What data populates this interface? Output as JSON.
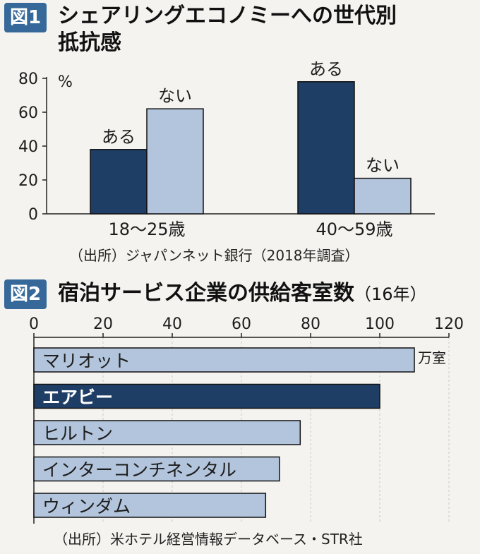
{
  "colors": {
    "dark_bar": "#1f3e66",
    "light_bar": "#b3c5dc",
    "tag_bg": "#36699a",
    "background": "#f4f3ef",
    "axis": "#222222"
  },
  "fig1": {
    "tag": "図1",
    "title_line1": "シェアリングエコノミーへの世代別",
    "title_line2": "抵抗感",
    "unit": "%",
    "source": "（出所）ジャパンネット銀行（2018年調査）"
  },
  "fig2": {
    "tag": "図2",
    "title": "宿泊サービス企業の供給客室数",
    "title_suffix": "（16年）",
    "unit": "万室",
    "source": "（出所）米ホテル経営情報データベース・STR社"
  },
  "chart_data": [
    {
      "type": "bar",
      "categories": [
        "18〜25歳",
        "40〜59歳"
      ],
      "series": [
        {
          "name": "ある",
          "values": [
            38,
            78
          ]
        },
        {
          "name": "ない",
          "values": [
            62,
            21
          ]
        }
      ],
      "ylim": [
        0,
        80
      ],
      "yticks": [
        0,
        20,
        40,
        60,
        80
      ],
      "ylabel": "%",
      "grid": false
    },
    {
      "type": "bar",
      "orientation": "horizontal",
      "categories": [
        "マリオット",
        "エアビー",
        "ヒルトン",
        "インターコンチネンタル",
        "ウィンダム"
      ],
      "values": [
        110,
        100,
        77,
        71,
        67
      ],
      "highlight": "エアビー",
      "xlim": [
        0,
        120
      ],
      "xticks": [
        0,
        20,
        40,
        60,
        80,
        100,
        120
      ],
      "xlabel": "万室",
      "grid": true
    }
  ]
}
